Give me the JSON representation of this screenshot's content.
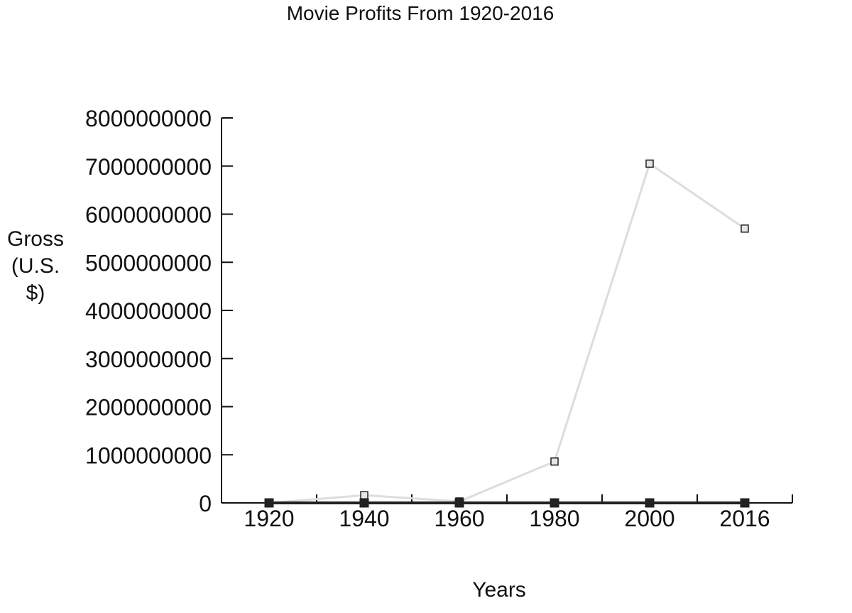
{
  "chart_data": {
    "type": "line",
    "title": "Movie Profits From 1920-2016",
    "xlabel": "Years",
    "ylabel_lines": [
      "Gross",
      "(U.S.",
      "$)"
    ],
    "categories": [
      "1920",
      "1940",
      "1960",
      "1980",
      "2000",
      "2016"
    ],
    "ylim": [
      0,
      8000000000
    ],
    "y_ticks": [
      0,
      1000000000,
      2000000000,
      3000000000,
      4000000000,
      5000000000,
      6000000000,
      7000000000,
      8000000000
    ],
    "y_tick_labels": [
      "0",
      "1000000000",
      "2000000000",
      "3000000000",
      "4000000000",
      "5000000000",
      "6000000000",
      "7000000000",
      "8000000000"
    ],
    "series": [
      {
        "values": [
          0,
          160000000,
          30000000,
          860000000,
          7050000000,
          5700000000
        ],
        "color": "#dddddd",
        "marker": "hollow-square"
      },
      {
        "values": [
          0,
          0,
          0,
          0,
          0,
          0
        ],
        "color": "#222222",
        "marker": "filled-square"
      }
    ],
    "grid": false,
    "legend": "none"
  }
}
